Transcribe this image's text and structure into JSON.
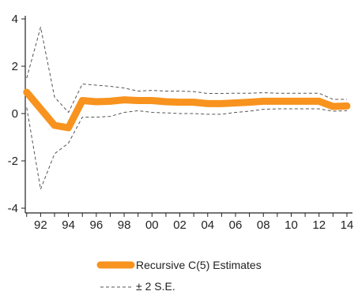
{
  "chart_data": {
    "type": "line",
    "x": [
      1991,
      1992,
      1993,
      1994,
      1995,
      1996,
      1997,
      1998,
      1999,
      2000,
      2001,
      2002,
      2003,
      2004,
      2005,
      2006,
      2007,
      2008,
      2009,
      2010,
      2011,
      2012,
      2013,
      2014
    ],
    "x_tick_values": [
      1992,
      1994,
      1996,
      1998,
      2000,
      2002,
      2004,
      2006,
      2008,
      2010,
      2012,
      2014
    ],
    "x_tick_labels": [
      "92",
      "94",
      "96",
      "98",
      "00",
      "02",
      "04",
      "06",
      "08",
      "10",
      "12",
      "14"
    ],
    "y_tick_values": [
      -4,
      -2,
      0,
      2,
      4
    ],
    "y_tick_labels": [
      "-4",
      "-2",
      "0",
      "2",
      "4"
    ],
    "xlim": [
      1990.9,
      2014.4
    ],
    "ylim": [
      -4.2,
      4
    ],
    "grid": false,
    "legend_position": "bottom-left",
    "series": [
      {
        "name": "Recursive C(5) Estimates",
        "color": "#f7931e",
        "style": "solid-thick",
        "values": [
          0.9,
          0.2,
          -0.5,
          -0.6,
          0.55,
          0.5,
          0.52,
          0.58,
          0.55,
          0.55,
          0.5,
          0.48,
          0.48,
          0.42,
          0.42,
          0.45,
          0.48,
          0.52,
          0.52,
          0.52,
          0.52,
          0.52,
          0.3,
          0.32
        ]
      },
      {
        "name": "± 2 S.E.",
        "color": "#555555",
        "style": "dashed",
        "values": [
          1.5,
          3.65,
          0.7,
          0.05,
          1.25,
          1.2,
          1.15,
          1.08,
          0.95,
          0.98,
          0.95,
          0.95,
          0.93,
          0.85,
          0.85,
          0.86,
          0.86,
          0.88,
          0.86,
          0.86,
          0.86,
          0.86,
          0.6,
          0.6
        ]
      },
      {
        "name": "",
        "color": "#555555",
        "style": "dashed",
        "values": [
          0.25,
          -3.2,
          -1.7,
          -1.25,
          -0.15,
          -0.15,
          -0.12,
          0.05,
          0.12,
          0.05,
          0.03,
          0.0,
          0.0,
          -0.03,
          -0.03,
          0.05,
          0.1,
          0.18,
          0.2,
          0.2,
          0.2,
          0.2,
          0.1,
          0.12
        ]
      }
    ]
  },
  "legend": {
    "estimate_label": "Recursive C(5) Estimates",
    "se_label": "± 2  S.E."
  }
}
